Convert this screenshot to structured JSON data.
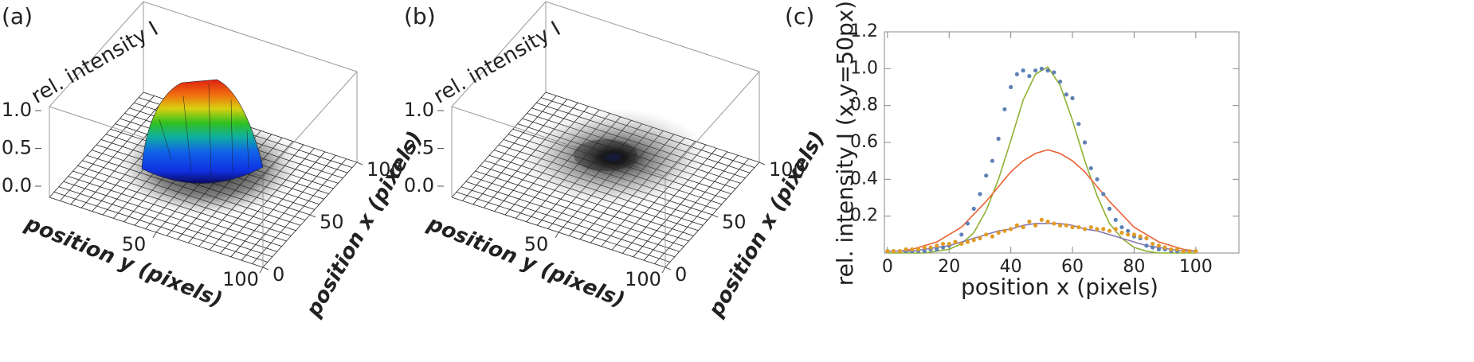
{
  "chart_data": [
    {
      "type": "surface3d",
      "label": "(a)",
      "zlabel": "rel. intensity I",
      "ylabel": "position y (pixels)",
      "xlabel": "position x (pixels)",
      "xlim": [
        0,
        100
      ],
      "ylim": [
        0,
        100
      ],
      "zlim": [
        0,
        1.2
      ],
      "xticks": [
        0,
        50,
        100
      ],
      "yticks": [
        50,
        100
      ],
      "zticks": [
        {
          "value": 0,
          "label": "0.0"
        },
        0.5,
        {
          "value": 1,
          "label": "1.0"
        }
      ],
      "colormap": "rainbow"
    },
    {
      "type": "surface3d",
      "label": "(b)",
      "zlabel": "rel. intensity I",
      "ylabel": "position y (pixels)",
      "xlabel": "position x (pixels)",
      "xlim": [
        0,
        100
      ],
      "ylim": [
        0,
        100
      ],
      "zlim": [
        0,
        1.2
      ],
      "xticks": [
        0,
        50,
        100
      ],
      "yticks": [
        50,
        100
      ],
      "zticks": [
        {
          "value": 0,
          "label": "0.0"
        },
        0.5,
        {
          "value": 1,
          "label": "1.0"
        }
      ],
      "colormap": "gray"
    },
    {
      "type": "xy",
      "label": "(c)",
      "xlabel": "position x (pixels)",
      "ylabel": "rel. intensity I (x,y=50px)",
      "xlim": [
        -1,
        114
      ],
      "ylim": [
        0,
        1.2
      ],
      "xticks": [
        0,
        20,
        40,
        60,
        80,
        100
      ],
      "yticks": [
        0.2,
        0.4,
        0.6,
        0.8,
        {
          "value": 1,
          "label": "1.0"
        },
        1.2
      ],
      "series": [
        {
          "style": "line",
          "color": "#8fb032",
          "x": [
            0,
            4,
            8,
            12,
            16,
            20,
            24,
            28,
            32,
            36,
            40,
            44,
            48,
            52,
            56,
            60,
            64,
            68,
            72,
            76,
            80,
            84,
            88,
            92,
            96,
            100
          ],
          "values": [
            0,
            0,
            0,
            0,
            0.01,
            0.02,
            0.05,
            0.11,
            0.23,
            0.4,
            0.61,
            0.83,
            0.97,
            1.01,
            0.91,
            0.72,
            0.5,
            0.31,
            0.16,
            0.08,
            0.03,
            0.01,
            0,
            0,
            0,
            0
          ]
        },
        {
          "style": "line",
          "color": "#eb6235",
          "x": [
            0,
            4,
            8,
            12,
            16,
            20,
            24,
            28,
            32,
            36,
            40,
            44,
            48,
            52,
            56,
            60,
            64,
            68,
            72,
            76,
            80,
            84,
            88,
            92,
            96,
            100
          ],
          "values": [
            0.01,
            0.01,
            0.02,
            0.04,
            0.06,
            0.1,
            0.14,
            0.21,
            0.28,
            0.36,
            0.44,
            0.5,
            0.54,
            0.56,
            0.54,
            0.5,
            0.44,
            0.36,
            0.28,
            0.21,
            0.14,
            0.1,
            0.06,
            0.04,
            0.02,
            0.01
          ]
        },
        {
          "style": "line",
          "color": "#8778b3",
          "x": [
            0,
            4,
            8,
            12,
            16,
            20,
            24,
            28,
            32,
            36,
            40,
            44,
            48,
            52,
            56,
            60,
            64,
            68,
            72,
            76,
            80,
            84,
            88,
            92,
            96,
            100
          ],
          "values": [
            0.01,
            0.01,
            0.01,
            0.02,
            0.03,
            0.04,
            0.06,
            0.08,
            0.1,
            0.12,
            0.13,
            0.15,
            0.16,
            0.16,
            0.16,
            0.15,
            0.13,
            0.12,
            0.1,
            0.08,
            0.06,
            0.04,
            0.03,
            0.02,
            0.01,
            0.01
          ]
        },
        {
          "style": "points",
          "color": "#5e81b5",
          "x": [
            0,
            2,
            4,
            6,
            8,
            10,
            12,
            14,
            16,
            18,
            20,
            22,
            24,
            26,
            28,
            30,
            32,
            34,
            36,
            38,
            40,
            42,
            44,
            46,
            48,
            50,
            52,
            54,
            56,
            58,
            60,
            62,
            64,
            66,
            68,
            70,
            72,
            74,
            76,
            78,
            80,
            82,
            84,
            86,
            88,
            90,
            92,
            94,
            96,
            98,
            100
          ],
          "values": [
            0.01,
            0.01,
            0.01,
            0.01,
            0.01,
            0.01,
            0.01,
            0.02,
            0.02,
            0.03,
            0.04,
            0.06,
            0.1,
            0.16,
            0.24,
            0.32,
            0.42,
            0.5,
            0.62,
            0.78,
            0.9,
            0.97,
            0.99,
            0.96,
            0.99,
            1,
            0.99,
            0.98,
            0.93,
            0.86,
            0.84,
            0.7,
            0.6,
            0.46,
            0.4,
            0.32,
            0.24,
            0.18,
            0.14,
            0.12,
            0.09,
            0.08,
            0.04,
            0.03,
            0.02,
            0.02,
            0.01,
            0.01,
            0.01,
            0.01,
            0.01
          ]
        },
        {
          "style": "points",
          "color": "#e19c24",
          "x": [
            0,
            2,
            4,
            6,
            8,
            10,
            12,
            14,
            16,
            18,
            20,
            22,
            24,
            26,
            28,
            30,
            32,
            34,
            36,
            38,
            40,
            42,
            44,
            46,
            48,
            50,
            52,
            54,
            56,
            58,
            60,
            62,
            64,
            66,
            68,
            70,
            72,
            74,
            76,
            78,
            80,
            82,
            84,
            86,
            88,
            90,
            92,
            94,
            96,
            98,
            100
          ],
          "values": [
            0.01,
            0.01,
            0.01,
            0.02,
            0.02,
            0.02,
            0.03,
            0.03,
            0.04,
            0.05,
            0.05,
            0.06,
            0.05,
            0.06,
            0.07,
            0.08,
            0.1,
            0.09,
            0.11,
            0.12,
            0.13,
            0.15,
            0.14,
            0.17,
            0.15,
            0.18,
            0.17,
            0.16,
            0.15,
            0.15,
            0.14,
            0.14,
            0.13,
            0.14,
            0.13,
            0.13,
            0.12,
            0.13,
            0.11,
            0.1,
            0.1,
            0.09,
            0.08,
            0.05,
            0.04,
            0.03,
            0.02,
            0.02,
            0.01,
            0.01,
            0.01
          ]
        }
      ]
    }
  ]
}
